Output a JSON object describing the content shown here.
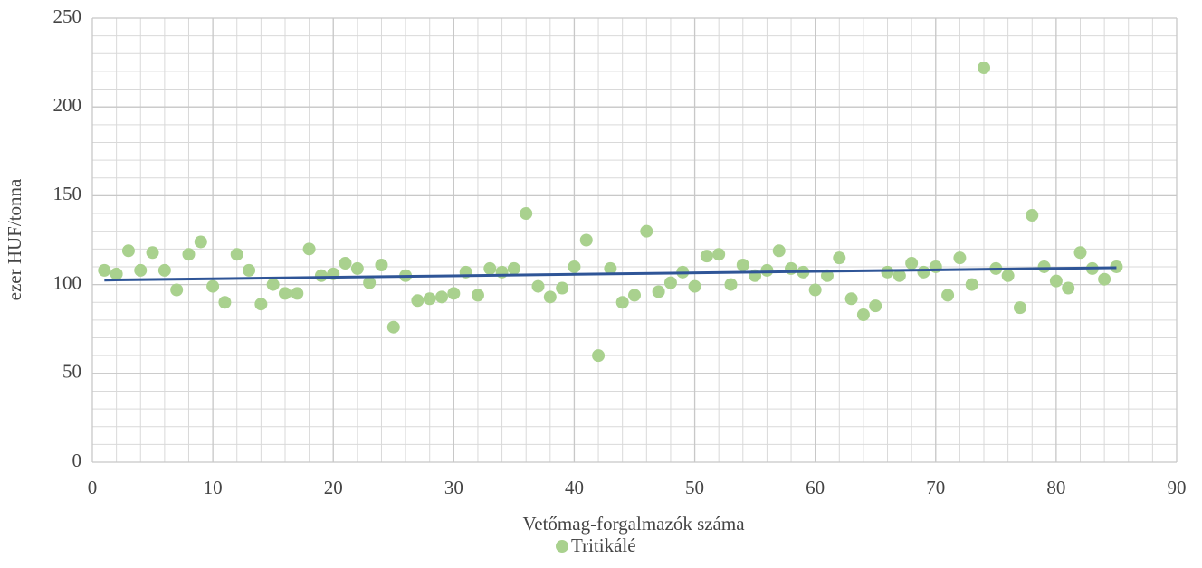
{
  "chart_data": {
    "type": "scatter",
    "xlabel": "Vetőmag-forgalmazók száma",
    "ylabel": "ezer HUF/tonna",
    "x": [
      1,
      2,
      3,
      4,
      5,
      6,
      7,
      8,
      9,
      10,
      11,
      12,
      13,
      14,
      15,
      16,
      17,
      18,
      19,
      20,
      21,
      22,
      23,
      24,
      25,
      26,
      27,
      28,
      29,
      30,
      31,
      32,
      33,
      34,
      35,
      36,
      37,
      38,
      39,
      40,
      41,
      42,
      43,
      44,
      45,
      46,
      47,
      48,
      49,
      50,
      51,
      52,
      53,
      54,
      55,
      56,
      57,
      58,
      59,
      60,
      61,
      62,
      63,
      64,
      65,
      66,
      67,
      68,
      69,
      70,
      71,
      72,
      73,
      74,
      75,
      76,
      77,
      78,
      79,
      80,
      81,
      82,
      83,
      84,
      85
    ],
    "series": [
      {
        "name": "Tritikálé",
        "color": "#a9d18e",
        "values": [
          108,
          106,
          119,
          108,
          118,
          108,
          97,
          117,
          124,
          99,
          90,
          117,
          108,
          89,
          100,
          95,
          95,
          120,
          105,
          106,
          112,
          109,
          101,
          111,
          76,
          105,
          91,
          92,
          93,
          95,
          107,
          94,
          109,
          107,
          109,
          140,
          99,
          93,
          98,
          110,
          125,
          60,
          109,
          90,
          94,
          130,
          96,
          101,
          107,
          99,
          116,
          117,
          100,
          111,
          105,
          108,
          119,
          109,
          107,
          97,
          105,
          115,
          92,
          83,
          88,
          107,
          105,
          112,
          107,
          110,
          94,
          115,
          100,
          222,
          109,
          105,
          87,
          139,
          110,
          102,
          98,
          118,
          109,
          103,
          110
        ]
      }
    ],
    "trendline": {
      "x": [
        1,
        85
      ],
      "y": [
        102.5,
        109.5
      ],
      "color": "#2f5597"
    },
    "xlim": [
      0,
      90
    ],
    "xticks": [
      0,
      10,
      20,
      30,
      40,
      50,
      60,
      70,
      80,
      90
    ],
    "ylim": [
      0,
      250
    ],
    "yticks": [
      0,
      50,
      100,
      150,
      200,
      250
    ],
    "grid": true,
    "minor_grid": {
      "x": 2,
      "y": 10
    },
    "legend": "bottom"
  }
}
